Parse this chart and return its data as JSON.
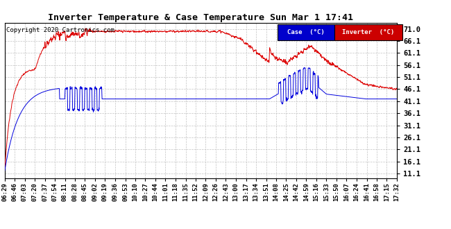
{
  "title": "Inverter Temperature & Case Temperature Sun Mar 1 17:41",
  "copyright": "Copyright 2020 Cartronics.com",
  "yticks": [
    11.1,
    16.1,
    21.1,
    26.1,
    31.1,
    36.1,
    41.1,
    46.1,
    51.1,
    56.1,
    61.1,
    66.1,
    71.0
  ],
  "ylim": [
    9.0,
    73.5
  ],
  "bg_color": "#ffffff",
  "grid_color": "#bbbbbb",
  "case_color": "#0000dd",
  "inverter_color": "#dd0000",
  "legend_case_bg": "#0000cc",
  "legend_inverter_bg": "#cc0000",
  "legend_text_color": "#ffffff",
  "xtick_labels": [
    "06:29",
    "06:46",
    "07:03",
    "07:20",
    "07:37",
    "07:54",
    "08:11",
    "08:28",
    "08:45",
    "09:02",
    "09:19",
    "09:36",
    "09:53",
    "10:10",
    "10:27",
    "10:44",
    "11:01",
    "11:18",
    "11:35",
    "11:52",
    "12:09",
    "12:26",
    "12:43",
    "13:00",
    "13:17",
    "13:34",
    "13:51",
    "14:08",
    "14:25",
    "14:42",
    "14:59",
    "15:16",
    "15:33",
    "15:50",
    "16:07",
    "16:24",
    "16:41",
    "16:58",
    "17:15",
    "17:32"
  ],
  "n_points": 2000,
  "seed": 7
}
